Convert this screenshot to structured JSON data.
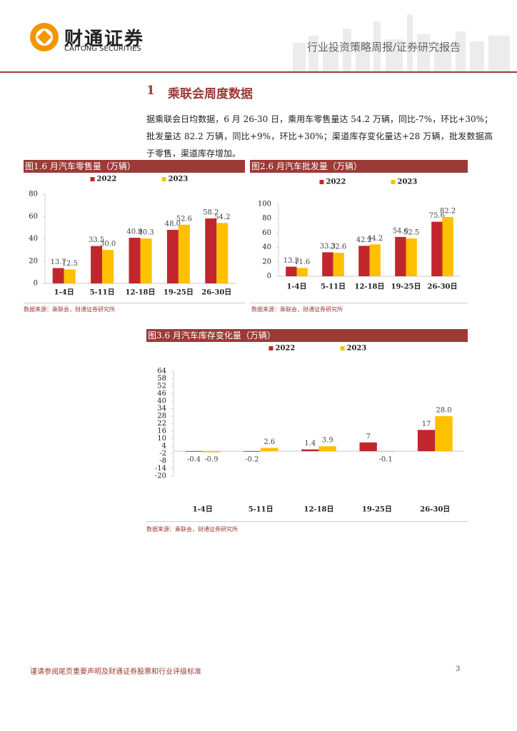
{
  "header": {
    "logo_cn": "财通证券",
    "logo_en": "CAITONG SECURITIES",
    "report_type": "行业投资策略周报/证券研究报告"
  },
  "section": {
    "number": "1",
    "title": "乘联会周度数据"
  },
  "paragraph": "据乘联会日均数据，6 月 26-30 日，乘用车零售量达 54.2 万辆，同比-7%，环比+30%；批发量达 82.2 万辆，同比+9%，环比+30%；渠道库存变化量达+28 万辆，批发数据高于零售，渠道库存增加。",
  "chart_data": [
    {
      "type": "bar",
      "title": "图1.6 月汽车零售量（万辆）",
      "source": "数据来源：乘联会，财通证券研究所",
      "categories": [
        "1-4日",
        "5-11日",
        "12-18日",
        "19-25日",
        "26-30日"
      ],
      "series": [
        {
          "name": "2022",
          "color": "#c0272d",
          "values": [
            13.7,
            33.5,
            40.9,
            48.0,
            58.2
          ],
          "value_labels": [
            "13.7",
            "33.5",
            "40.9",
            "48.0",
            "58.2"
          ]
        },
        {
          "name": "2023",
          "color": "#ffc000",
          "values": [
            12.5,
            30.0,
            40.3,
            52.6,
            54.2
          ],
          "value_labels": [
            "12.5",
            "30.0",
            "40.3",
            "52.6",
            "54.2"
          ]
        }
      ],
      "ylim": [
        0,
        80
      ],
      "yticks": [
        0,
        20,
        40,
        60,
        80
      ],
      "grid": false
    },
    {
      "type": "bar",
      "title": "图2.6 月汽车批发量（万辆）",
      "source": "数据来源：乘联会，财通证券研究所",
      "categories": [
        "1-4日",
        "5-11日",
        "12-18日",
        "19-25日",
        "26-30日"
      ],
      "series": [
        {
          "name": "2022",
          "color": "#c0272d",
          "values": [
            13.3,
            33.3,
            42.2,
            54.6,
            75.6
          ],
          "value_labels": [
            "13.3",
            "33.3",
            "42.2",
            "54.6",
            "75.6"
          ]
        },
        {
          "name": "2023",
          "color": "#ffc000",
          "values": [
            11.6,
            32.6,
            44.2,
            52.5,
            82.2
          ],
          "value_labels": [
            "11.6",
            "32.6",
            "44.2",
            "52.5",
            "82.2"
          ]
        }
      ],
      "ylim": [
        0,
        100
      ],
      "yticks": [
        0,
        20,
        40,
        60,
        80,
        100
      ],
      "grid": false
    },
    {
      "type": "bar",
      "title": "图3.6 月汽车库存变化量（万辆）",
      "source": "数据来源：乘联会，财通证券研究所",
      "categories": [
        "1-4日",
        "5-11日",
        "12-18日",
        "19-25日",
        "26-30日"
      ],
      "series": [
        {
          "name": "2022",
          "color": "#c0272d",
          "values": [
            -0.4,
            -0.2,
            1.4,
            7,
            17
          ],
          "value_labels": [
            "-0.4",
            "-0.2",
            "1.4",
            "7",
            "17"
          ]
        },
        {
          "name": "2023",
          "color": "#ffc000",
          "values": [
            -0.9,
            2.6,
            3.9,
            -0.1,
            28.0
          ],
          "value_labels": [
            "-0.9",
            "2.6",
            "3.9",
            "-0.1",
            "28.0"
          ]
        }
      ],
      "ylim": [
        -20,
        64
      ],
      "yticks": [
        -20,
        -14,
        -8,
        -2,
        4,
        10,
        16,
        22,
        28,
        34,
        40,
        46,
        52,
        58,
        64
      ],
      "grid": false
    }
  ],
  "footer": {
    "disclaimer": "谨请参阅尾页重要声明及财通证券股票和行业评级标准",
    "page": "3"
  }
}
